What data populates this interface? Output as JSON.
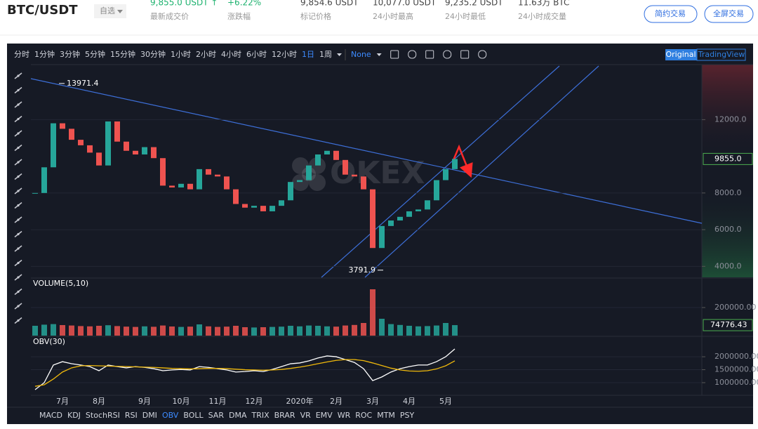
{
  "header": {
    "symbol": "BTC/USDT",
    "watch": "自选",
    "stats": [
      {
        "value": "9,855.0 USDT ↑",
        "label": "最新成交价"
      },
      {
        "value": "+6.22%",
        "label": "涨跌幅"
      },
      {
        "value": "9,854.6 USDT",
        "label": "标记价格"
      },
      {
        "value": "10,077.0 USDT",
        "label": "24小时最高"
      },
      {
        "value": "9,235.2 USDT",
        "label": "24小时最低"
      },
      {
        "value": "11.63万 BTC",
        "label": "24小时成交量"
      }
    ],
    "buttons": [
      "简约交易",
      "全屏交易"
    ]
  },
  "toolbar": {
    "intervals": [
      "分时",
      "1分钟",
      "3分钟",
      "5分钟",
      "15分钟",
      "30分钟",
      "1小时",
      "2小时",
      "4小时",
      "6小时",
      "12小时",
      "1日",
      "1周"
    ],
    "chart_style": "None",
    "views": [
      "Original",
      "TradingView"
    ]
  },
  "watermark": "OKEX",
  "indicators": [
    "MACD",
    "KDJ",
    "StochRSI",
    "RSI",
    "DMI",
    "OBV",
    "BOLL",
    "SAR",
    "DMA",
    "TRIX",
    "BRAR",
    "VR",
    "EMV",
    "WR",
    "ROC",
    "MTM",
    "PSY"
  ],
  "chart_data": [
    {
      "type": "candlestick",
      "up_color": "#26a69a",
      "down_color": "#ef5350",
      "values": [
        8000,
        9400,
        11800,
        11500,
        10900,
        10600,
        10200,
        9500,
        11900,
        10800,
        10300,
        10100,
        10500,
        9900,
        8400,
        8300,
        8500,
        8200,
        9300,
        9000,
        8900,
        8200,
        7400,
        7200,
        7300,
        7000,
        7300,
        7600,
        8600,
        8700,
        9500,
        10100,
        10300,
        9800,
        9000,
        8900,
        8200,
        5000,
        6200,
        6500,
        6700,
        7000,
        7100,
        7600,
        8700,
        9300,
        9855
      ],
      "ylim": [
        3400,
        15000
      ],
      "yticks": [
        {
          "value": 4000,
          "label": "4000.0"
        },
        {
          "value": 6000,
          "label": "6000.0"
        },
        {
          "value": 8000,
          "label": "8000.0"
        },
        {
          "value": 12000,
          "label": "12000.0"
        }
      ],
      "grid": true,
      "high": 13971.4,
      "low": 3791.9,
      "last": {
        "value": 9855,
        "label": "9855.0"
      }
    },
    {
      "type": "bar",
      "title": "VOLUME(5,10)",
      "values": [
        70000,
        78000,
        82000,
        75000,
        72000,
        68000,
        66000,
        70000,
        74000,
        68000,
        64000,
        62000,
        66000,
        63000,
        72000,
        65000,
        62000,
        64000,
        80000,
        66000,
        62000,
        64000,
        70000,
        60000,
        58000,
        60000,
        62000,
        64000,
        70000,
        66000,
        72000,
        70000,
        66000,
        64000,
        72000,
        76000,
        90000,
        330000,
        120000,
        82000,
        76000,
        70000,
        66000,
        68000,
        72000,
        90000,
        74776.43
      ],
      "ylim": [
        0,
        405000
      ],
      "yticks": [
        {
          "value": 200000,
          "label": "200000.00"
        }
      ],
      "grid": true,
      "last": 74776.43
    },
    {
      "type": "line",
      "title": "OBV(30)",
      "categories": [
        null,
        null,
        null,
        "7月",
        null,
        null,
        null,
        "8月",
        null,
        null,
        null,
        null,
        "9月",
        null,
        null,
        null,
        "10月",
        null,
        null,
        null,
        "11月",
        null,
        null,
        null,
        "12月",
        null,
        null,
        null,
        null,
        "2020年",
        null,
        null,
        null,
        "2月",
        null,
        null,
        null,
        "3月",
        null,
        null,
        null,
        "4月",
        null,
        null,
        null,
        "5月",
        null
      ],
      "series": [
        {
          "color": "#ffffff",
          "values": [
            730000,
            1000000,
            1680000,
            1810000,
            1730000,
            1680000,
            1620000,
            1460000,
            1680000,
            1620000,
            1570000,
            1620000,
            1590000,
            1540000,
            1460000,
            1490000,
            1510000,
            1490000,
            1620000,
            1590000,
            1540000,
            1490000,
            1410000,
            1430000,
            1460000,
            1430000,
            1510000,
            1620000,
            1730000,
            1760000,
            1840000,
            1950000,
            2030000,
            2000000,
            1890000,
            1780000,
            1540000,
            1080000,
            1220000,
            1410000,
            1540000,
            1620000,
            1680000,
            1680000,
            1810000,
            2000000,
            2300000
          ]
        },
        {
          "color": "#f0b90b",
          "values": [
            860000,
            920000,
            1140000,
            1410000,
            1570000,
            1650000,
            1660000,
            1650000,
            1640000,
            1630000,
            1620000,
            1610000,
            1600000,
            1590000,
            1570000,
            1550000,
            1540000,
            1530000,
            1540000,
            1550000,
            1550000,
            1540000,
            1520000,
            1500000,
            1490000,
            1480000,
            1490000,
            1510000,
            1550000,
            1600000,
            1660000,
            1730000,
            1800000,
            1860000,
            1890000,
            1890000,
            1850000,
            1760000,
            1660000,
            1560000,
            1490000,
            1450000,
            1440000,
            1460000,
            1530000,
            1650000,
            1840000
          ]
        }
      ],
      "ylim": [
        540000,
        2760000
      ],
      "yticks": [
        {
          "value": 1000000,
          "label": "1000000.00"
        },
        {
          "value": 1500000,
          "label": "1500000.00"
        },
        {
          "value": 2000000,
          "label": "2000000.00"
        }
      ],
      "grid": true
    }
  ]
}
